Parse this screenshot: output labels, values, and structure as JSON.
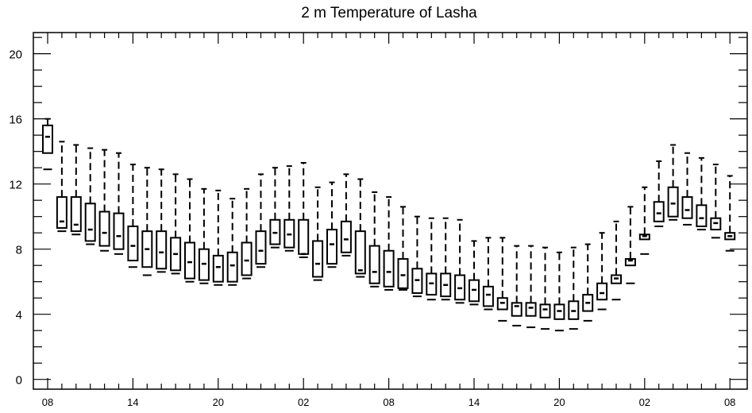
{
  "chart_data": {
    "type": "box",
    "title": "2 m Temperature of Lasha",
    "xlabel": "",
    "ylabel": "",
    "ylim": [
      -0.6,
      21.3
    ],
    "y_ticks": [
      0,
      4,
      8,
      12,
      16,
      20
    ],
    "x_tick_labels": [
      "08",
      "14",
      "20",
      "02",
      "08",
      "14",
      "20",
      "02",
      "08"
    ],
    "x_tick_steps": [
      0,
      6,
      12,
      18,
      24,
      30,
      36,
      42,
      48
    ],
    "step_hours": 1,
    "grid": false,
    "legend": "none",
    "boxes": [
      {
        "step": 0,
        "min": 12.9,
        "q1": 13.9,
        "median": 14.9,
        "q3": 15.6,
        "max": 16.0
      },
      {
        "step": 1,
        "min": 9.1,
        "q1": 9.3,
        "median": 9.7,
        "q3": 11.2,
        "max": 14.6
      },
      {
        "step": 2,
        "min": 8.9,
        "q1": 9.1,
        "median": 9.5,
        "q3": 11.2,
        "max": 14.4
      },
      {
        "step": 3,
        "min": 8.3,
        "q1": 8.5,
        "median": 9.2,
        "q3": 10.8,
        "max": 14.2
      },
      {
        "step": 4,
        "min": 7.9,
        "q1": 8.2,
        "median": 9.0,
        "q3": 10.3,
        "max": 14.1
      },
      {
        "step": 5,
        "min": 7.7,
        "q1": 8.0,
        "median": 8.8,
        "q3": 10.2,
        "max": 13.9
      },
      {
        "step": 6,
        "min": 6.9,
        "q1": 7.3,
        "median": 8.2,
        "q3": 9.4,
        "max": 13.2
      },
      {
        "step": 7,
        "min": 6.4,
        "q1": 6.9,
        "median": 8.0,
        "q3": 9.1,
        "max": 13.0
      },
      {
        "step": 8,
        "min": 6.6,
        "q1": 6.8,
        "median": 7.8,
        "q3": 9.1,
        "max": 12.9
      },
      {
        "step": 9,
        "min": 6.5,
        "q1": 6.7,
        "median": 7.7,
        "q3": 8.7,
        "max": 12.6
      },
      {
        "step": 10,
        "min": 6.0,
        "q1": 6.2,
        "median": 7.2,
        "q3": 8.4,
        "max": 12.3
      },
      {
        "step": 11,
        "min": 5.9,
        "q1": 6.1,
        "median": 7.1,
        "q3": 8.0,
        "max": 11.7
      },
      {
        "step": 12,
        "min": 5.8,
        "q1": 6.0,
        "median": 6.9,
        "q3": 7.6,
        "max": 11.6
      },
      {
        "step": 13,
        "min": 5.8,
        "q1": 6.0,
        "median": 7.0,
        "q3": 7.8,
        "max": 11.1
      },
      {
        "step": 14,
        "min": 6.2,
        "q1": 6.4,
        "median": 7.3,
        "q3": 8.4,
        "max": 11.7
      },
      {
        "step": 15,
        "min": 6.9,
        "q1": 7.1,
        "median": 7.9,
        "q3": 9.1,
        "max": 12.6
      },
      {
        "step": 16,
        "min": 8.1,
        "q1": 8.3,
        "median": 9.0,
        "q3": 9.8,
        "max": 13.0
      },
      {
        "step": 17,
        "min": 7.9,
        "q1": 8.1,
        "median": 8.9,
        "q3": 9.8,
        "max": 13.1
      },
      {
        "step": 18,
        "min": 7.5,
        "q1": 7.7,
        "median": 7.7,
        "q3": 9.8,
        "max": 13.3
      },
      {
        "step": 19,
        "min": 6.1,
        "q1": 6.3,
        "median": 7.1,
        "q3": 8.5,
        "max": 11.8
      },
      {
        "step": 20,
        "min": 6.9,
        "q1": 7.1,
        "median": 8.3,
        "q3": 9.2,
        "max": 12.1
      },
      {
        "step": 21,
        "min": 7.6,
        "q1": 7.8,
        "median": 8.6,
        "q3": 9.7,
        "max": 12.6
      },
      {
        "step": 22,
        "min": 6.3,
        "q1": 6.5,
        "median": 6.7,
        "q3": 9.1,
        "max": 12.3
      },
      {
        "step": 23,
        "min": 5.7,
        "q1": 5.9,
        "median": 6.6,
        "q3": 8.2,
        "max": 11.5
      },
      {
        "step": 24,
        "min": 5.5,
        "q1": 5.7,
        "median": 6.6,
        "q3": 7.9,
        "max": 11.2
      },
      {
        "step": 25,
        "min": 5.5,
        "q1": 5.6,
        "median": 6.4,
        "q3": 7.4,
        "max": 10.6
      },
      {
        "step": 26,
        "min": 5.1,
        "q1": 5.3,
        "median": 6.1,
        "q3": 6.8,
        "max": 10.0
      },
      {
        "step": 27,
        "min": 4.9,
        "q1": 5.2,
        "median": 5.9,
        "q3": 6.5,
        "max": 9.9
      },
      {
        "step": 28,
        "min": 4.9,
        "q1": 5.1,
        "median": 5.8,
        "q3": 6.5,
        "max": 9.9
      },
      {
        "step": 29,
        "min": 4.7,
        "q1": 4.9,
        "median": 5.6,
        "q3": 6.4,
        "max": 9.8
      },
      {
        "step": 30,
        "min": 4.6,
        "q1": 4.8,
        "median": 5.5,
        "q3": 6.1,
        "max": 8.5
      },
      {
        "step": 31,
        "min": 4.3,
        "q1": 4.5,
        "median": 5.2,
        "q3": 5.7,
        "max": 8.7
      },
      {
        "step": 32,
        "min": 3.6,
        "q1": 4.3,
        "median": 4.7,
        "q3": 5.0,
        "max": 8.7
      },
      {
        "step": 33,
        "min": 3.3,
        "q1": 3.9,
        "median": 4.5,
        "q3": 4.7,
        "max": 8.2
      },
      {
        "step": 34,
        "min": 3.2,
        "q1": 3.9,
        "median": 4.4,
        "q3": 4.7,
        "max": 8.2
      },
      {
        "step": 35,
        "min": 3.1,
        "q1": 3.8,
        "median": 4.3,
        "q3": 4.6,
        "max": 8.1
      },
      {
        "step": 36,
        "min": 3.0,
        "q1": 3.7,
        "median": 4.2,
        "q3": 4.6,
        "max": 7.8
      },
      {
        "step": 37,
        "min": 3.1,
        "q1": 3.7,
        "median": 4.2,
        "q3": 4.8,
        "max": 8.1
      },
      {
        "step": 38,
        "min": 3.6,
        "q1": 4.2,
        "median": 4.7,
        "q3": 5.2,
        "max": 8.3
      },
      {
        "step": 39,
        "min": 4.3,
        "q1": 4.9,
        "median": 5.3,
        "q3": 5.9,
        "max": 9.0
      },
      {
        "step": 40,
        "min": 4.9,
        "q1": 5.9,
        "median": 6.2,
        "q3": 6.4,
        "max": 9.7
      },
      {
        "step": 41,
        "min": 5.9,
        "q1": 7.0,
        "median": 7.3,
        "q3": 7.4,
        "max": 10.6
      },
      {
        "step": 42,
        "min": 7.7,
        "q1": 8.6,
        "median": 8.8,
        "q3": 8.9,
        "max": 11.8
      },
      {
        "step": 43,
        "min": 9.4,
        "q1": 9.7,
        "median": 10.2,
        "q3": 10.9,
        "max": 13.4
      },
      {
        "step": 44,
        "min": 9.8,
        "q1": 10.0,
        "median": 10.8,
        "q3": 11.8,
        "max": 14.4
      },
      {
        "step": 45,
        "min": 9.5,
        "q1": 9.9,
        "median": 10.4,
        "q3": 11.2,
        "max": 13.9
      },
      {
        "step": 46,
        "min": 9.2,
        "q1": 9.4,
        "median": 9.9,
        "q3": 10.7,
        "max": 13.6
      },
      {
        "step": 47,
        "min": 8.7,
        "q1": 9.2,
        "median": 9.6,
        "q3": 9.9,
        "max": 13.2
      },
      {
        "step": 48,
        "min": 7.9,
        "q1": 8.6,
        "median": 8.8,
        "q3": 9.0,
        "max": 12.5
      }
    ]
  }
}
